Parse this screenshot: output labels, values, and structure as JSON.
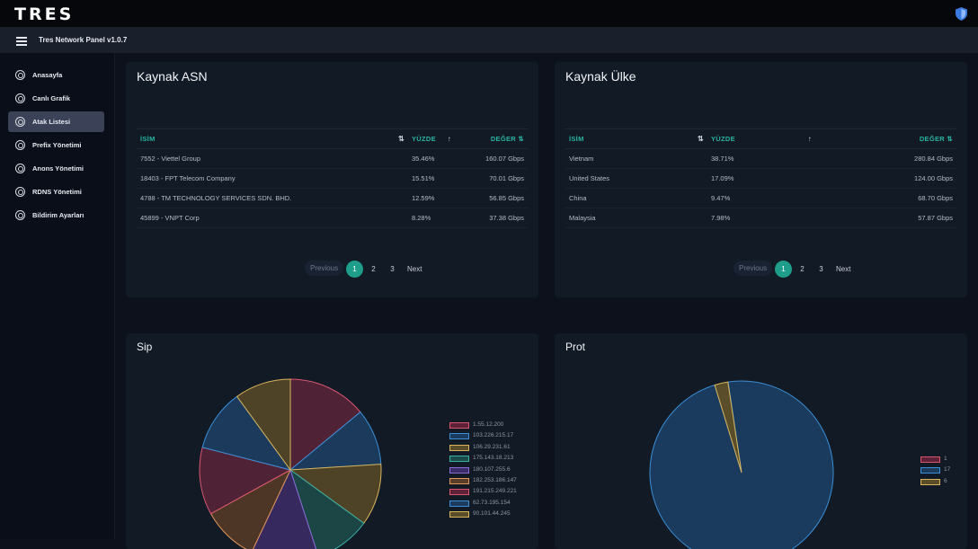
{
  "app": {
    "logo": "TRES",
    "title": "Tres Network Panel v1.0.7"
  },
  "sidebar": {
    "items": [
      {
        "label": "Anasayfa",
        "active": false
      },
      {
        "label": "Canlı Grafik",
        "active": false
      },
      {
        "label": "Atak Listesi",
        "active": true
      },
      {
        "label": "Prefix Yönetimi",
        "active": false
      },
      {
        "label": "Anons Yönetimi",
        "active": false
      },
      {
        "label": "RDNS Yönetimi",
        "active": false
      },
      {
        "label": "Bildirim Ayarları",
        "active": false
      }
    ]
  },
  "asn_card": {
    "title": "Kaynak ASN",
    "columns": [
      "İSİM",
      "YÜZDE",
      "DEĞER"
    ],
    "rows": [
      {
        "name": "7552 - Viettel Group",
        "percent": "35.46%",
        "value": "160.07 Gbps"
      },
      {
        "name": "18403 - FPT Telecom Company",
        "percent": "15.51%",
        "value": "70.01 Gbps"
      },
      {
        "name": "4788 - TM TECHNOLOGY SERVICES SDN. BHD.",
        "percent": "12.59%",
        "value": "56.85 Gbps"
      },
      {
        "name": "45899 - VNPT Corp",
        "percent": "8.28%",
        "value": "37.38 Gbps"
      }
    ],
    "pagination": {
      "prev": "Previous",
      "pages": [
        "1",
        "2",
        "3"
      ],
      "current": "1",
      "next": "Next"
    }
  },
  "country_card": {
    "title": "Kaynak Ülke",
    "columns": [
      "İSİM",
      "YÜZDE",
      "DEĞER"
    ],
    "rows": [
      {
        "name": "Vietnam",
        "percent": "38.71%",
        "value": "280.84 Gbps"
      },
      {
        "name": "United States",
        "percent": "17.09%",
        "value": "124.00 Gbps"
      },
      {
        "name": "China",
        "percent": "9.47%",
        "value": "68.70 Gbps"
      },
      {
        "name": "Malaysia",
        "percent": "7.98%",
        "value": "57.87 Gbps"
      }
    ],
    "pagination": {
      "prev": "Previous",
      "pages": [
        "1",
        "2",
        "3"
      ],
      "current": "1",
      "next": "Next"
    }
  },
  "sip_card": {
    "title": "Sip",
    "legend": [
      {
        "label": "1.55.12.200",
        "color": "#d9566f",
        "fill": "#5e2238"
      },
      {
        "label": "103.226.215.17",
        "color": "#3a8fd6",
        "fill": "#1b3a5c"
      },
      {
        "label": "106.29.231.61",
        "color": "#d8b45a",
        "fill": "#5a4d2a"
      },
      {
        "label": "175.143.18.213",
        "color": "#3ab0a6",
        "fill": "#1b4a4a"
      },
      {
        "label": "180.107.255.6",
        "color": "#8d68d8",
        "fill": "#3a2c66"
      },
      {
        "label": "182.253.186.147",
        "color": "#e0955a",
        "fill": "#5a3e2a"
      },
      {
        "label": "191.215.249.221",
        "color": "#d9566f",
        "fill": "#5e2238"
      },
      {
        "label": "62.73.195.154",
        "color": "#3a8fd6",
        "fill": "#1b3a5c"
      },
      {
        "label": "90.101.44.245",
        "color": "#d8b45a",
        "fill": "#5a4d2a"
      }
    ],
    "slices": [
      {
        "value": 14,
        "color": "#d9566f",
        "fill": "#4f2236"
      },
      {
        "value": 10,
        "color": "#3a8fd6",
        "fill": "#1b3a5c"
      },
      {
        "value": 11,
        "color": "#d8b45a",
        "fill": "#4e4326"
      },
      {
        "value": 10,
        "color": "#3ab0a6",
        "fill": "#1b4645"
      },
      {
        "value": 12,
        "color": "#8d68d8",
        "fill": "#36295e"
      },
      {
        "value": 10,
        "color": "#e0955a",
        "fill": "#4d3626"
      },
      {
        "value": 12,
        "color": "#d9566f",
        "fill": "#4f2236"
      },
      {
        "value": 11,
        "color": "#3a8fd6",
        "fill": "#1b3a5c"
      },
      {
        "value": 10,
        "color": "#d8b45a",
        "fill": "#4e4326"
      }
    ]
  },
  "prot_card": {
    "title": "Prot",
    "legend": [
      {
        "label": "1",
        "color": "#d9566f",
        "fill": "#5e2238"
      },
      {
        "label": "17",
        "color": "#3a8fd6",
        "fill": "#1b3a5c"
      },
      {
        "label": "6",
        "color": "#d8b45a",
        "fill": "#5a4d2a"
      }
    ],
    "slices": [
      {
        "value": 0.05,
        "color": "#d9566f",
        "fill": "#4f2236"
      },
      {
        "value": 97.6,
        "color": "#3a8fd6",
        "fill": "#1a3a5e"
      },
      {
        "value": 2.35,
        "color": "#d8b45a",
        "fill": "#5a4d2a"
      }
    ]
  }
}
